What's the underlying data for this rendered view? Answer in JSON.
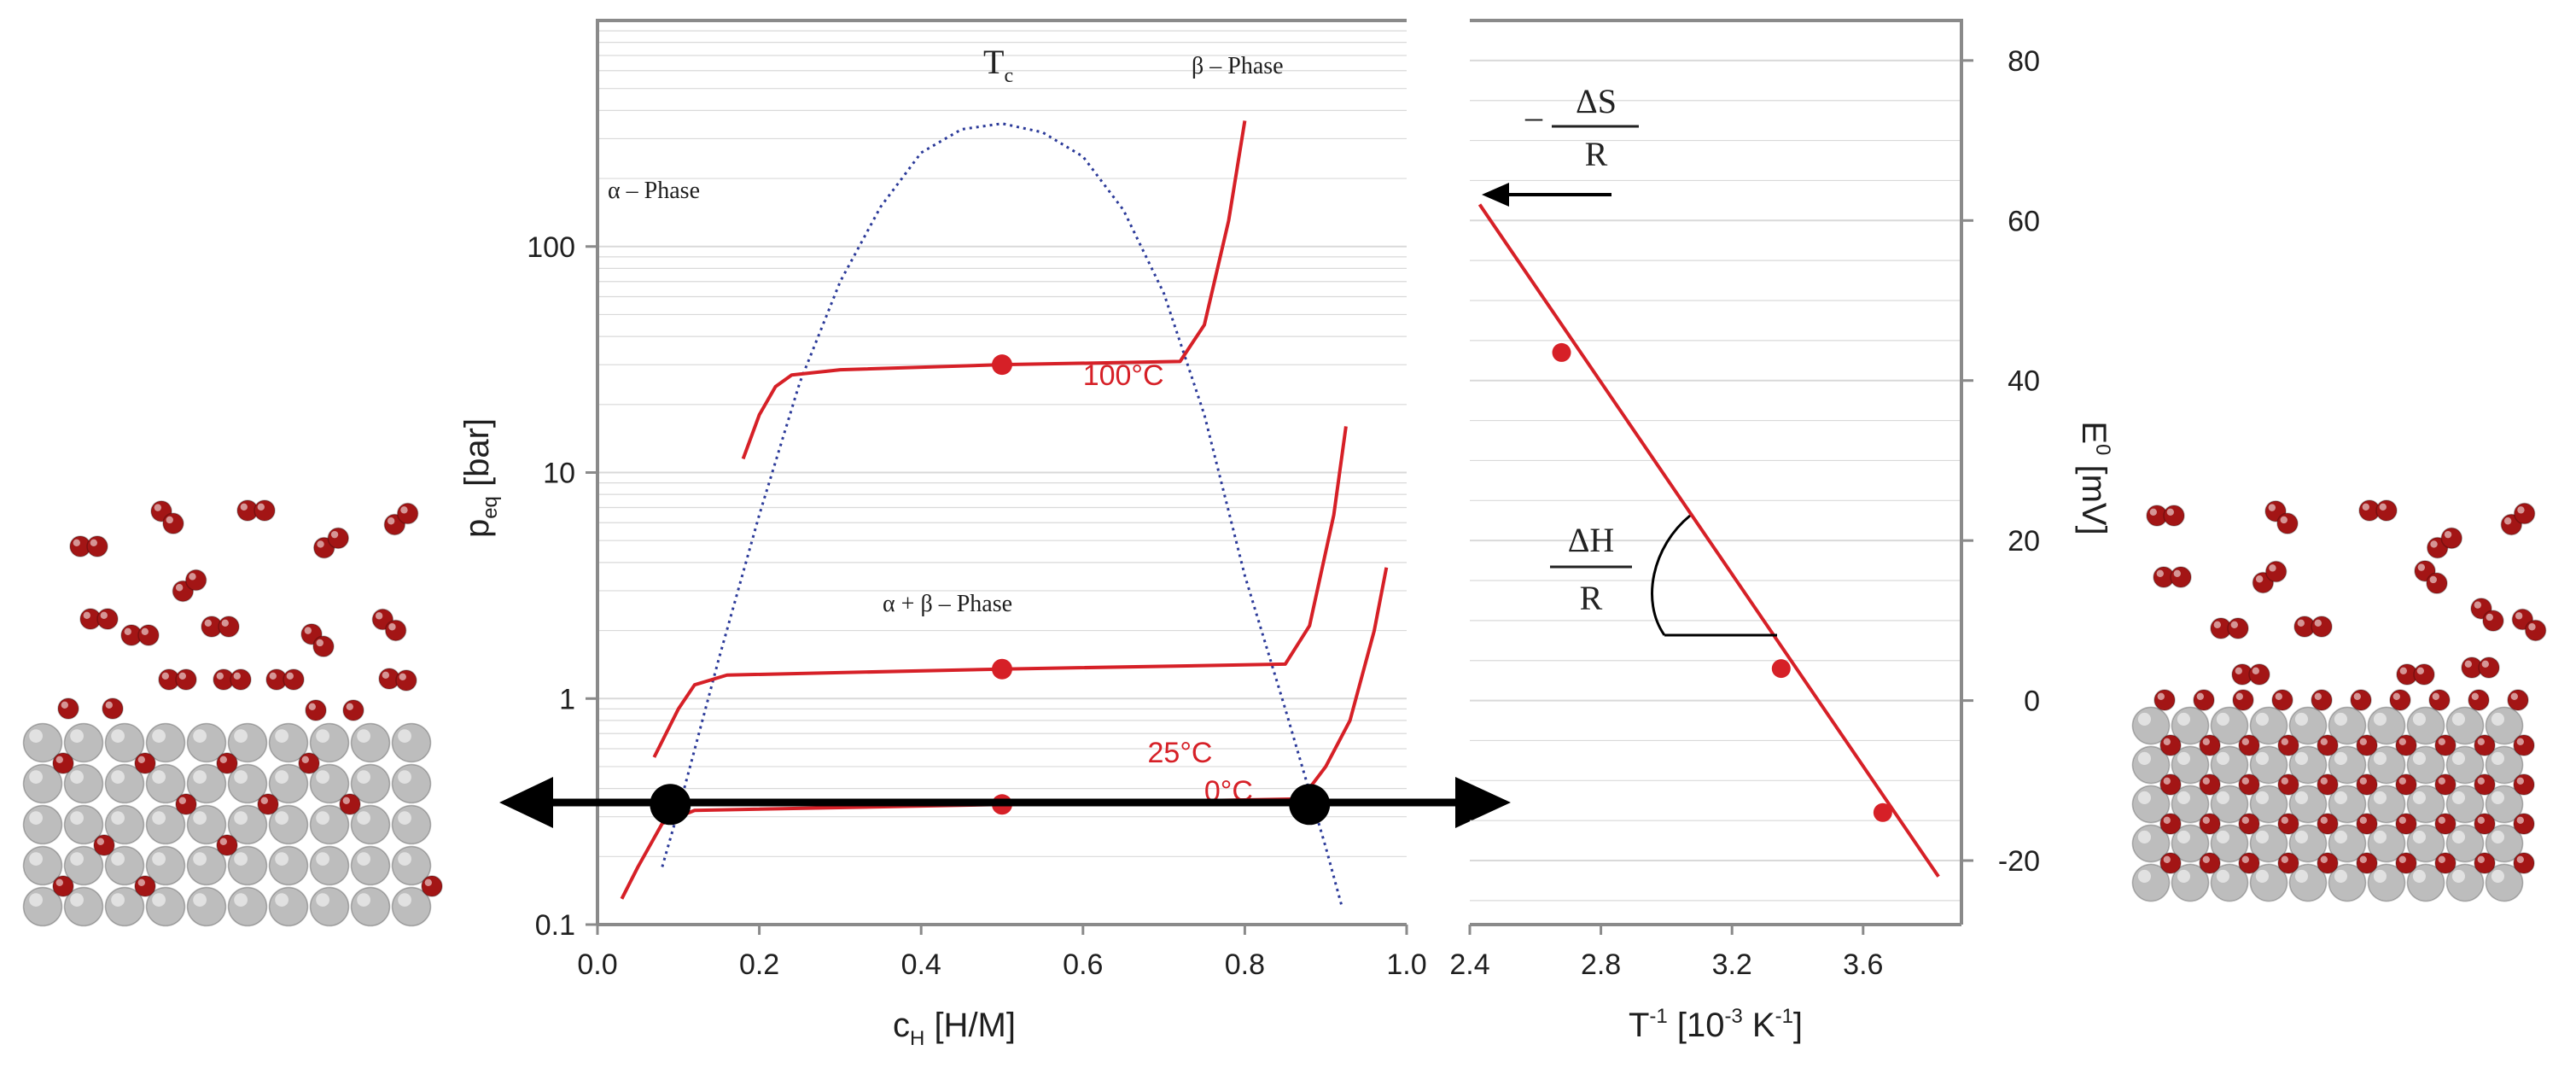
{
  "colors": {
    "curve": "#d62027",
    "tc_curve": "#2b3a99",
    "atom_red": "#a31515",
    "atom_grey": "#bdbdbd",
    "arrow": "#000000",
    "grid": "#d9d9d9"
  },
  "icons": [
    "metal-lattice-with-dilute-hydrogen",
    "metal-lattice-with-dense-hydrogen",
    "double-arrow"
  ],
  "chart_data": [
    {
      "type": "line",
      "xlabel": {
        "main": "c",
        "sub": "H",
        "rest": " [H/M]"
      },
      "ylabel": {
        "main": "p",
        "sub": "eq",
        "rest": " [bar]"
      },
      "xlim": [
        0.0,
        1.0
      ],
      "ylim": [
        0.1,
        1000
      ],
      "y_scale": "log",
      "grid": true,
      "x_ticks": [
        "0.0",
        "0.2",
        "0.4",
        "0.6",
        "0.8",
        "1.0"
      ],
      "y_ticks": [
        "0.1",
        "1",
        "10",
        "100"
      ],
      "y_tick_values": [
        0.1,
        1,
        10,
        100
      ],
      "annotations": {
        "alpha_phase": "α – Phase",
        "beta_phase": "β – Phase",
        "two_phase": "α + β – Phase",
        "tc": {
          "main": "T",
          "sub": "c"
        }
      },
      "series": [
        {
          "name": "100°C",
          "x": [
            0.18,
            0.2,
            0.22,
            0.24,
            0.3,
            0.5,
            0.72,
            0.75,
            0.78,
            0.8
          ],
          "y": [
            11.5,
            18,
            24,
            27,
            28.5,
            30,
            31,
            45,
            130,
            360
          ],
          "marker": {
            "x": 0.5,
            "y": 30
          }
        },
        {
          "name": "25°C",
          "x": [
            0.07,
            0.1,
            0.12,
            0.16,
            0.5,
            0.85,
            0.88,
            0.91,
            0.925
          ],
          "y": [
            0.55,
            0.9,
            1.15,
            1.27,
            1.35,
            1.42,
            2.1,
            6.5,
            16
          ]
        },
        {
          "name": "0°C",
          "x": [
            0.03,
            0.05,
            0.08,
            0.12,
            0.5,
            0.87,
            0.9,
            0.93,
            0.96,
            0.975
          ],
          "y": [
            0.13,
            0.18,
            0.28,
            0.32,
            0.34,
            0.36,
            0.5,
            0.8,
            2.0,
            3.8
          ]
        }
      ],
      "markers": [
        {
          "series": "25°C",
          "x": 0.5,
          "y": 1.35
        },
        {
          "series": "0°C",
          "x": 0.5,
          "y": 0.34
        }
      ],
      "tc_curve": {
        "x": [
          0.08,
          0.1,
          0.15,
          0.2,
          0.25,
          0.3,
          0.35,
          0.4,
          0.45,
          0.5,
          0.55,
          0.6,
          0.65,
          0.7,
          0.75,
          0.8,
          0.85,
          0.9,
          0.92
        ],
        "y": [
          0.18,
          0.32,
          1.5,
          6.5,
          25,
          70,
          150,
          260,
          330,
          350,
          320,
          250,
          145,
          62,
          18,
          3.5,
          0.9,
          0.22,
          0.12
        ]
      },
      "large_points": [
        {
          "x": 0.09,
          "y": 0.34
        },
        {
          "x": 0.88,
          "y": 0.34
        }
      ]
    },
    {
      "type": "line",
      "xlabel": {
        "main": "T",
        "sup1": "-1",
        "rest": " [10",
        "sup2": "-3",
        "rest2": " K",
        "sup3": "-1",
        "end": "]"
      },
      "ylabel": {
        "main": "E",
        "sup": "0",
        "rest": " [mV]"
      },
      "xlim": [
        2.4,
        3.9
      ],
      "ylim": [
        -28,
        85
      ],
      "grid": true,
      "x_ticks": [
        "2.4",
        "2.8",
        "3.2",
        "3.6"
      ],
      "y_ticks": [
        "80",
        "60",
        "40",
        "20",
        "0",
        "-20"
      ],
      "x_tick_values": [
        2.4,
        2.8,
        3.2,
        3.6
      ],
      "y_tick_values": [
        80,
        60,
        40,
        20,
        0,
        -20
      ],
      "series": [
        {
          "name": "",
          "x": [
            2.43,
            3.83
          ],
          "y": [
            62,
            -22
          ]
        }
      ],
      "markers": [
        {
          "x": 2.68,
          "y": 43.5
        },
        {
          "x": 3.35,
          "y": 4
        },
        {
          "x": 3.66,
          "y": -14
        }
      ],
      "annotations": {
        "intercept": {
          "minus": "–",
          "num": "ΔS",
          "den": "R"
        },
        "slope": {
          "num": "ΔH",
          "den": "R"
        }
      }
    }
  ]
}
